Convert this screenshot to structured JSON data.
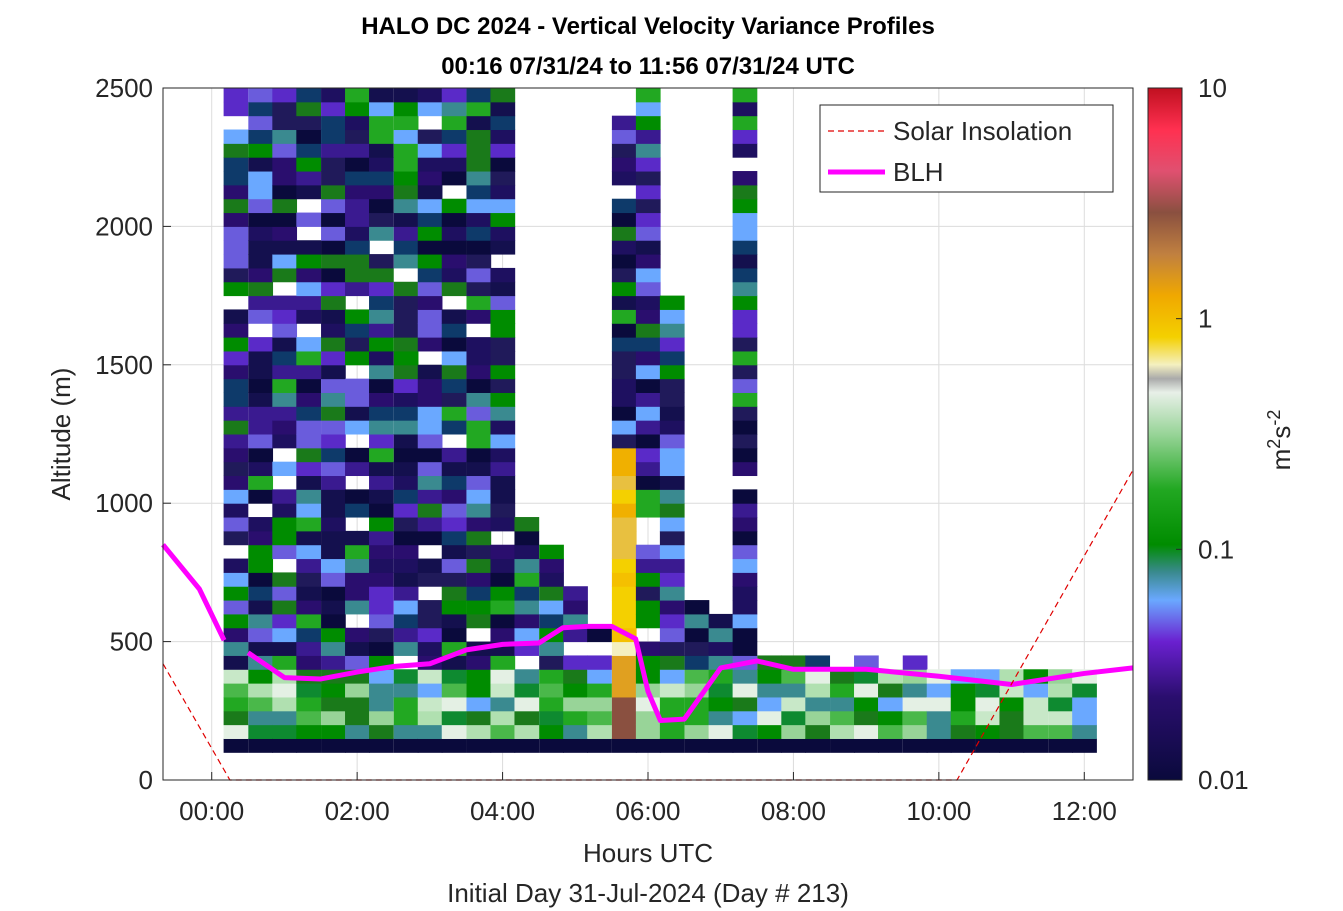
{
  "chart_data": {
    "type": "heatmap",
    "title": "HALO DC 2024 - Vertical Velocity Variance Profiles",
    "subtitle": "00:16 07/31/24 to 11:56 07/31/24  UTC",
    "xlabel": "Hours UTC",
    "xlabel2": "Initial Day 31-Jul-2024 (Day # 213)",
    "ylabel": "Altitude (m)",
    "x_ticks": [
      "00:00",
      "02:00",
      "04:00",
      "06:00",
      "08:00",
      "10:00",
      "12:00"
    ],
    "y_ticks": [
      "0",
      "500",
      "1000",
      "1500",
      "2000",
      "2500"
    ],
    "xlim_hours": [
      -0.67,
      12.67
    ],
    "ylim": [
      0,
      2500
    ],
    "grid": true,
    "colorbar": {
      "label_base": "m",
      "label_exp1": "2",
      "label_mid": "s",
      "label_exp2": "-2",
      "ticks": [
        "10",
        "1",
        "0.1",
        "0.01"
      ],
      "scale": "log",
      "range": [
        0.01,
        10
      ]
    },
    "legend": {
      "position": "top-right",
      "entries": [
        "Solar Insolation",
        "BLH"
      ]
    },
    "series": [
      {
        "name": "BLH",
        "color": "#ff00ff",
        "segments": [
          {
            "x": [
              -0.67,
              -0.17,
              0.17
            ],
            "y": [
              850,
              690,
              505
            ]
          },
          {
            "x": [
              0.5,
              1.0,
              1.5,
              2.0,
              2.5,
              3.0,
              3.5,
              4.0,
              4.5,
              4.83,
              5.17,
              5.5,
              5.83,
              6.0,
              6.17,
              6.5,
              7.0,
              7.5,
              8.0,
              9.0,
              10.0,
              11.0,
              12.0,
              12.67
            ],
            "y": [
              460,
              370,
              365,
              390,
              410,
              420,
              470,
              490,
              495,
              550,
              555,
              555,
              510,
              320,
              215,
              220,
              405,
              430,
              400,
              400,
              375,
              345,
              385,
              405
            ]
          }
        ]
      },
      {
        "name": "Solar Insolation",
        "color": "#e00000",
        "x": [
          -0.67,
          0.25,
          10.25,
          12.67
        ],
        "y": [
          420,
          0,
          0,
          1120
        ]
      }
    ],
    "heatmap": {
      "time_step_hours": 0.333,
      "alt_step_m": 50,
      "columns": [
        {
          "x": 0.33,
          "top": 2500
        },
        {
          "x": 0.67,
          "top": 2500
        },
        {
          "x": 1.0,
          "top": 2500
        },
        {
          "x": 1.33,
          "top": 2500
        },
        {
          "x": 1.67,
          "top": 2500
        },
        {
          "x": 2.0,
          "top": 2500
        },
        {
          "x": 2.33,
          "top": 2500
        },
        {
          "x": 2.67,
          "top": 2500
        },
        {
          "x": 3.0,
          "top": 2500
        },
        {
          "x": 3.33,
          "top": 2500
        },
        {
          "x": 3.67,
          "top": 2500
        },
        {
          "x": 4.0,
          "top": 2500
        },
        {
          "x": 4.33,
          "top": 950
        },
        {
          "x": 4.67,
          "top": 850
        },
        {
          "x": 5.0,
          "top": 700
        },
        {
          "x": 5.33,
          "top": 600
        },
        {
          "x": 5.67,
          "top": 2400
        },
        {
          "x": 6.0,
          "top": 2500
        },
        {
          "x": 6.33,
          "top": 1750
        },
        {
          "x": 6.67,
          "top": 650
        },
        {
          "x": 7.0,
          "top": 600
        },
        {
          "x": 7.33,
          "top": 2500
        },
        {
          "x": 7.67,
          "top": 450
        },
        {
          "x": 8.0,
          "top": 450
        },
        {
          "x": 8.33,
          "top": 450
        },
        {
          "x": 8.67,
          "top": 450
        },
        {
          "x": 9.0,
          "top": 450
        },
        {
          "x": 9.33,
          "top": 450
        },
        {
          "x": 9.67,
          "top": 450
        },
        {
          "x": 10.0,
          "top": 400
        },
        {
          "x": 10.33,
          "top": 400
        },
        {
          "x": 10.67,
          "top": 400
        },
        {
          "x": 11.0,
          "top": 400
        },
        {
          "x": 11.33,
          "top": 400
        },
        {
          "x": 11.67,
          "top": 400
        },
        {
          "x": 12.0,
          "top": 400
        }
      ],
      "bottom_m": 100
    }
  }
}
